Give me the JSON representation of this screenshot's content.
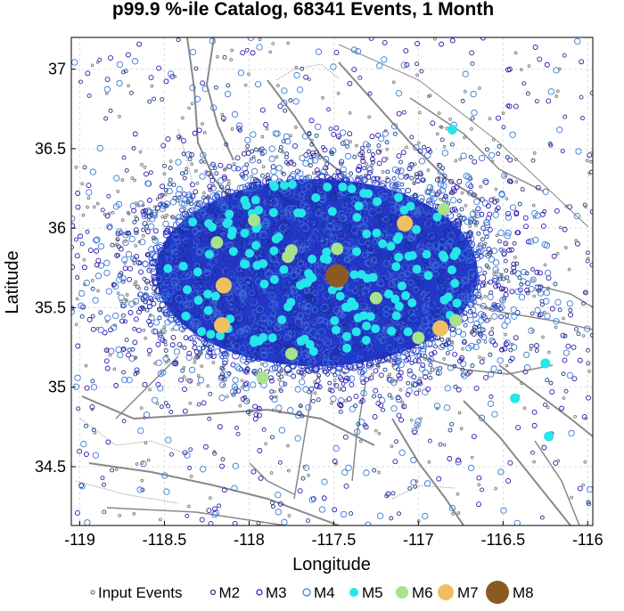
{
  "chart_data": {
    "type": "scatter",
    "title": "p99.9 %-ile Catalog, 68341 Events, 1 Month",
    "xlabel": "Longitude",
    "ylabel": "Latitude",
    "xlim": [
      -119.05,
      -115.97
    ],
    "ylim": [
      34.13,
      37.2
    ],
    "x_ticks": [
      -119,
      -118.5,
      -118,
      -117.5,
      -117,
      -116.5,
      -116
    ],
    "x_tick_labels": [
      "-119",
      "-118.5",
      "-118",
      "-117.5",
      "-117",
      "-116.5",
      "-116"
    ],
    "y_ticks": [
      34.5,
      35,
      35.5,
      36,
      36.5,
      37
    ],
    "y_tick_labels": [
      "34.5",
      "35",
      "35.5",
      "36",
      "36.5",
      "37"
    ],
    "grid": true,
    "legend_placement": "bottom",
    "legend": [
      {
        "label": "Input Events",
        "marker": "small-hollow-circle",
        "color": "#777777"
      },
      {
        "label": "M2",
        "marker": "hollow-circle",
        "color": "#1a3a8a"
      },
      {
        "label": "M3",
        "marker": "hollow-circle",
        "color": "#2a0fb0"
      },
      {
        "label": "M4",
        "marker": "hollow-circle",
        "color": "#3a7ad6"
      },
      {
        "label": "M5",
        "marker": "filled-circle",
        "color": "#26e6ec"
      },
      {
        "label": "M6",
        "marker": "filled-circle",
        "color": "#a8e28a"
      },
      {
        "label": "M7",
        "marker": "filled-circle",
        "color": "#f0c060"
      },
      {
        "label": "M8",
        "marker": "filled-circle",
        "color": "#8a5a22"
      }
    ],
    "cluster": {
      "center": [
        -117.6,
        35.72
      ],
      "half_width_lon": 0.98,
      "half_height_lat": 0.62
    },
    "large_events": [
      {
        "mag": "M8",
        "lon": -117.48,
        "lat": 35.7
      },
      {
        "mag": "M7",
        "lon": -118.15,
        "lat": 35.64
      },
      {
        "mag": "M7",
        "lon": -118.16,
        "lat": 35.39
      },
      {
        "mag": "M7",
        "lon": -117.08,
        "lat": 36.03
      },
      {
        "mag": "M7",
        "lon": -116.87,
        "lat": 35.37
      },
      {
        "mag": "M6",
        "lon": -117.97,
        "lat": 36.05
      },
      {
        "mag": "M6",
        "lon": -118.19,
        "lat": 35.91
      },
      {
        "mag": "M6",
        "lon": -117.75,
        "lat": 35.86
      },
      {
        "mag": "M6",
        "lon": -117.77,
        "lat": 35.82
      },
      {
        "mag": "M6",
        "lon": -117.48,
        "lat": 35.87
      },
      {
        "mag": "M6",
        "lon": -117.25,
        "lat": 35.56
      },
      {
        "mag": "M6",
        "lon": -117.0,
        "lat": 35.31
      },
      {
        "mag": "M6",
        "lon": -116.78,
        "lat": 35.42
      },
      {
        "mag": "M6",
        "lon": -117.75,
        "lat": 35.21
      },
      {
        "mag": "M6",
        "lon": -117.92,
        "lat": 35.06
      },
      {
        "mag": "M6",
        "lon": -116.85,
        "lat": 36.12
      },
      {
        "mag": "M5",
        "lon": -116.8,
        "lat": 36.62
      },
      {
        "mag": "M5",
        "lon": -116.25,
        "lat": 35.15
      },
      {
        "mag": "M5",
        "lon": -116.43,
        "lat": 34.93
      },
      {
        "mag": "M5",
        "lon": -116.23,
        "lat": 34.69
      }
    ]
  }
}
